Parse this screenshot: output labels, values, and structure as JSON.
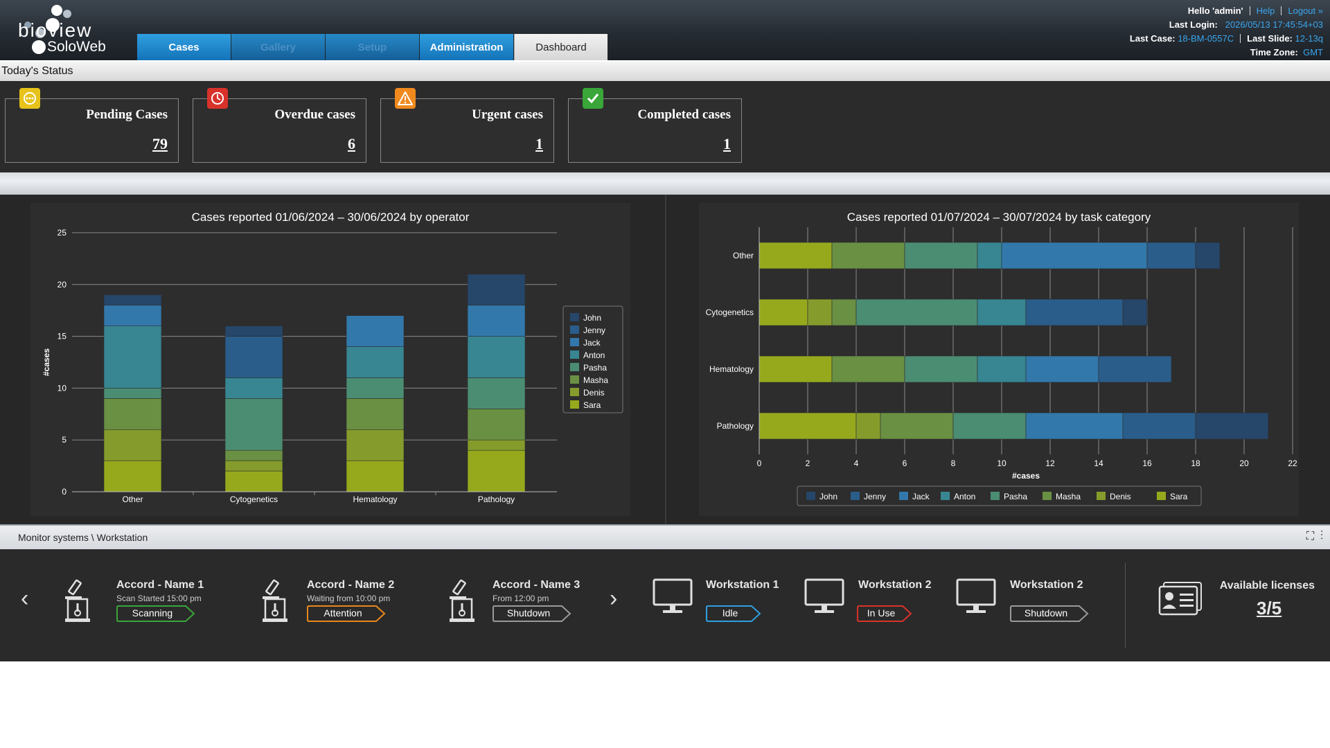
{
  "app": {
    "logo_top": "bioview",
    "logo_bottom": "SoloWeb"
  },
  "tabs": [
    {
      "label": "Cases",
      "state": "normal"
    },
    {
      "label": "Gallery",
      "state": "disabled"
    },
    {
      "label": "Setup",
      "state": "disabled"
    },
    {
      "label": "Administration",
      "state": "normal"
    },
    {
      "label": "Dashboard",
      "state": "active"
    }
  ],
  "user": {
    "greeting": "Hello 'admin'",
    "help": "Help",
    "logout": "Logout »",
    "last_login_label": "Last Login:",
    "last_login_value": "2026/05/13 17:45:54+03",
    "last_case_label": "Last Case:",
    "last_case_value": "18-BM-0557C",
    "last_slide_label": "Last Slide:",
    "last_slide_value": "12-13q",
    "time_zone_label": "Time Zone:",
    "time_zone_value": "GMT"
  },
  "status": {
    "title": "Today's Status",
    "cards": [
      {
        "title": "Pending Cases",
        "value": "79",
        "icon": "pending-icon",
        "color": "#e7c21a"
      },
      {
        "title": "Overdue cases",
        "value": "6",
        "icon": "clock-icon",
        "color": "#d9322b"
      },
      {
        "title": "Urgent cases",
        "value": "1",
        "icon": "warning-icon",
        "color": "#f08a1e"
      },
      {
        "title": "Completed cases",
        "value": "1",
        "icon": "check-icon",
        "color": "#3aa63a"
      }
    ]
  },
  "operators": [
    "John",
    "Jenny",
    "Jack",
    "Anton",
    "Pasha",
    "Masha",
    "Denis",
    "Sara"
  ],
  "operator_colors": {
    "John": "#26466a",
    "Jenny": "#2a5d8a",
    "Jack": "#3278ab",
    "Anton": "#378692",
    "Pasha": "#4b8d73",
    "Masha": "#6a9043",
    "Denis": "#859c2c",
    "Sara": "#96a91d"
  },
  "chart_data": [
    {
      "type": "bar",
      "stacked": true,
      "orientation": "vertical",
      "title": "Cases reported 01/06/2024 – 30/06/2024 by operator",
      "ylabel": "#cases",
      "xlabel": "",
      "categories": [
        "Other",
        "Cytogenetics",
        "Hematology",
        "Pathology"
      ],
      "ylim": [
        0,
        25
      ],
      "yticks": [
        0,
        5,
        10,
        15,
        20,
        25
      ],
      "grid": true,
      "legend_position": "right",
      "series": [
        {
          "name": "Sara",
          "values": [
            3,
            2,
            3,
            4
          ]
        },
        {
          "name": "Denis",
          "values": [
            3,
            1,
            3,
            1
          ]
        },
        {
          "name": "Masha",
          "values": [
            3,
            1,
            3,
            3
          ]
        },
        {
          "name": "Pasha",
          "values": [
            1,
            5,
            2,
            3
          ]
        },
        {
          "name": "Anton",
          "values": [
            6,
            2,
            3,
            4
          ]
        },
        {
          "name": "Jack",
          "values": [
            2,
            0,
            3,
            3
          ]
        },
        {
          "name": "Jenny",
          "values": [
            0,
            4,
            0,
            0
          ]
        },
        {
          "name": "John",
          "values": [
            1,
            1,
            0,
            3
          ]
        }
      ]
    },
    {
      "type": "bar",
      "stacked": true,
      "orientation": "horizontal",
      "title": "Cases reported 01/07/2024 – 30/07/2024 by task category",
      "xlabel": "#cases",
      "ylabel": "",
      "categories": [
        "Other",
        "Cytogenetics",
        "Hematology",
        "Pathology"
      ],
      "xlim": [
        0,
        22
      ],
      "xticks": [
        0,
        2,
        4,
        6,
        8,
        10,
        12,
        14,
        16,
        18,
        20,
        22
      ],
      "grid": true,
      "legend_position": "bottom",
      "series": [
        {
          "name": "Sara",
          "values": [
            3,
            2,
            3,
            4
          ]
        },
        {
          "name": "Denis",
          "values": [
            0,
            1,
            0,
            1
          ]
        },
        {
          "name": "Masha",
          "values": [
            3,
            1,
            3,
            3
          ]
        },
        {
          "name": "Pasha",
          "values": [
            3,
            5,
            3,
            3
          ]
        },
        {
          "name": "Anton",
          "values": [
            1,
            2,
            2,
            0
          ]
        },
        {
          "name": "Jack",
          "values": [
            6,
            0,
            3,
            4
          ]
        },
        {
          "name": "Jenny",
          "values": [
            2,
            4,
            3,
            3
          ]
        },
        {
          "name": "John",
          "values": [
            1,
            1,
            0,
            3
          ]
        }
      ]
    }
  ],
  "monitor": {
    "breadcrumb": "Monitor systems \\ Workstation",
    "scanners": [
      {
        "name": "Accord - Name 1",
        "sub": "Scan Started 15:00 pm",
        "status": "Scanning",
        "status_color": "#3aa63a"
      },
      {
        "name": "Accord - Name 2",
        "sub": "Waiting from 10:00 pm",
        "status": "Attention",
        "status_color": "#e8891c"
      },
      {
        "name": "Accord - Name 3",
        "sub": "From 12:00 pm",
        "status": "Shutdown",
        "status_color": "#9a9a9a"
      }
    ],
    "workstations": [
      {
        "name": "Workstation 1",
        "status": "Idle",
        "status_color": "#2f9fe0"
      },
      {
        "name": "Workstation 2",
        "status": "In Use",
        "status_color": "#d9322b"
      },
      {
        "name": "Workstation 2",
        "status": "Shutdown",
        "status_color": "#9a9a9a"
      }
    ],
    "licenses_label": "Available licenses",
    "licenses_value": "3/5"
  }
}
